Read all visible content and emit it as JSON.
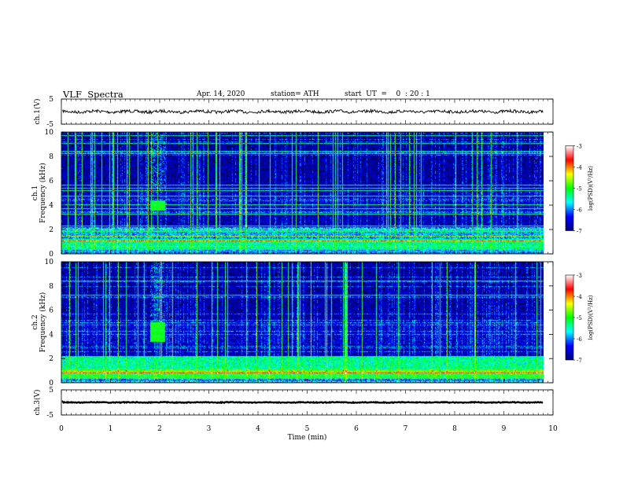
{
  "header": {
    "title": "VLF  Spectra",
    "date": "Apr. 14, 2020",
    "station": "station= ATH",
    "start": "start  UT  =    0  : 20 : 1"
  },
  "chart_data": [
    {
      "id": "ch1-waveform",
      "type": "line",
      "ylabel": "ch.1(V)",
      "ylim": [
        -5,
        5
      ],
      "yticks": [
        "5",
        "-5"
      ],
      "series": [
        {
          "mean": 0,
          "amplitude": 0.6
        }
      ],
      "xlim": [
        0,
        10
      ]
    },
    {
      "id": "ch1-spectrogram",
      "type": "heatmap",
      "ylabel": "ch.1\nFrequency (kHz)",
      "ylim": [
        0,
        10
      ],
      "yticks": [
        "0",
        "2",
        "4",
        "6",
        "8",
        "10"
      ],
      "xlim": [
        0,
        10
      ],
      "data_end_min": 9.8,
      "colorbar": {
        "label": "log(PSD)(V²/Hz)",
        "range": [
          -7,
          -3
        ],
        "ticks": [
          "-3",
          "-4",
          "-5",
          "-6",
          "-7"
        ]
      },
      "features": {
        "burst": {
          "t": [
            1.8,
            2.1
          ],
          "f": [
            3.6,
            4.4
          ]
        }
      }
    },
    {
      "id": "ch2-spectrogram",
      "type": "heatmap",
      "ylabel": "ch.2\nFrequency (kHz)",
      "ylim": [
        0,
        10
      ],
      "yticks": [
        "0",
        "2",
        "4",
        "6",
        "8",
        "10"
      ],
      "xlim": [
        0,
        10
      ],
      "data_end_min": 9.8,
      "colorbar": {
        "label": "log(PSD)(V²/Hz)",
        "range": [
          -7,
          -3
        ],
        "ticks": [
          "-3",
          "-4",
          "-5",
          "-6",
          "-7"
        ]
      },
      "features": {
        "burst": {
          "t": [
            1.8,
            2.1
          ],
          "f": [
            3.4,
            5.0
          ]
        }
      }
    },
    {
      "id": "ch3-waveform",
      "type": "line",
      "ylabel": "ch.3(V)",
      "ylim": [
        -5,
        5
      ],
      "yticks": [
        "5",
        "-5"
      ],
      "series": [
        {
          "mean": 0,
          "amplitude": 0.15
        }
      ],
      "xlim": [
        0,
        10
      ],
      "xlabel": "Time  (min)",
      "xticks": [
        "0",
        "1",
        "2",
        "3",
        "4",
        "5",
        "6",
        "7",
        "8",
        "9",
        "10"
      ]
    }
  ],
  "colors": {
    "colormap": [
      "#000000",
      "#000080",
      "#0000ff",
      "#00ffff",
      "#00ff00",
      "#ffff00",
      "#ff0000",
      "#ffffff"
    ]
  }
}
